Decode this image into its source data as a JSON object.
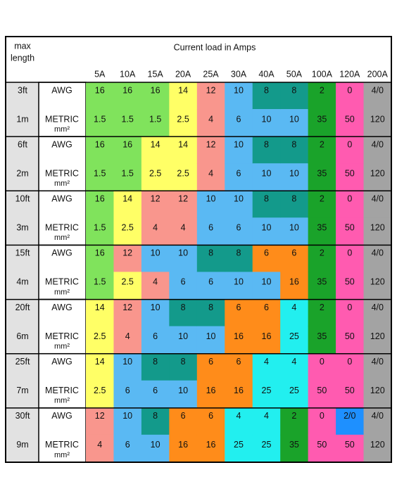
{
  "header": {
    "corner": [
      "max",
      "length"
    ],
    "title": "Current load in Amps",
    "columns": [
      "5A",
      "10A",
      "15A",
      "20A",
      "25A",
      "30A",
      "40A",
      "50A",
      "100A",
      "120A",
      "200A"
    ]
  },
  "row_labels": {
    "awg": "AWG",
    "metric": [
      "METRIC",
      "mm²"
    ]
  },
  "groups": [
    {
      "length_ft": "3ft",
      "length_m": "1m",
      "awg": [
        16,
        16,
        16,
        14,
        12,
        10,
        8,
        8,
        2,
        0,
        "4/0"
      ],
      "metric": [
        1.5,
        1.5,
        1.5,
        2.5,
        4,
        6,
        10,
        10,
        35,
        50,
        120
      ]
    },
    {
      "length_ft": "6ft",
      "length_m": "2m",
      "awg": [
        16,
        16,
        14,
        14,
        12,
        10,
        8,
        8,
        2,
        0,
        "4/0"
      ],
      "metric": [
        1.5,
        1.5,
        2.5,
        2.5,
        4,
        6,
        10,
        10,
        35,
        50,
        120
      ]
    },
    {
      "length_ft": "10ft",
      "length_m": "3m",
      "awg": [
        16,
        14,
        12,
        12,
        10,
        10,
        8,
        8,
        2,
        0,
        "4/0"
      ],
      "metric": [
        1.5,
        2.5,
        4,
        4,
        6,
        6,
        10,
        10,
        35,
        50,
        120
      ]
    },
    {
      "length_ft": "15ft",
      "length_m": "4m",
      "awg": [
        16,
        12,
        10,
        10,
        8,
        8,
        6,
        6,
        2,
        0,
        "4/0"
      ],
      "metric": [
        1.5,
        2.5,
        4,
        6,
        6,
        10,
        10,
        16,
        35,
        50,
        120
      ]
    },
    {
      "length_ft": "20ft",
      "length_m": "6m",
      "awg": [
        14,
        12,
        10,
        8,
        8,
        6,
        6,
        4,
        2,
        0,
        "4/0"
      ],
      "metric": [
        2.5,
        4,
        6,
        10,
        10,
        16,
        16,
        25,
        35,
        50,
        120
      ]
    },
    {
      "length_ft": "25ft",
      "length_m": "7m",
      "awg": [
        14,
        10,
        8,
        8,
        6,
        6,
        4,
        4,
        0,
        0,
        "4/0"
      ],
      "metric": [
        2.5,
        6,
        6,
        10,
        16,
        16,
        25,
        25,
        50,
        50,
        120
      ]
    },
    {
      "length_ft": "30ft",
      "length_m": "9m",
      "awg": [
        12,
        10,
        8,
        6,
        6,
        4,
        4,
        2,
        0,
        "2/0",
        "4/0"
      ],
      "metric": [
        4,
        6,
        10,
        16,
        16,
        25,
        25,
        35,
        50,
        50,
        120
      ]
    }
  ],
  "cell_colors": {
    "16": "#80e35c",
    "1.5": "#80e35c",
    "14": "#ffff66",
    "2.5": "#ffff66",
    "12": "#f9968d",
    "4": "#f9968d",
    "10": "#5ab9f3",
    "6": "#5ab9f3",
    "8": "#139a8b",
    "6_awg": "#ff8c1a",
    "16_metric": "#ff8c1a",
    "4_awg": "#22efef",
    "25": "#22efef",
    "2": "#1aa32a",
    "35": "#1aa32a",
    "0": "#ff5bb0",
    "50": "#ff5bb0",
    "2/0": "#1e90ff",
    "4/0": "#a3a3a3",
    "120": "#a3a3a3"
  }
}
